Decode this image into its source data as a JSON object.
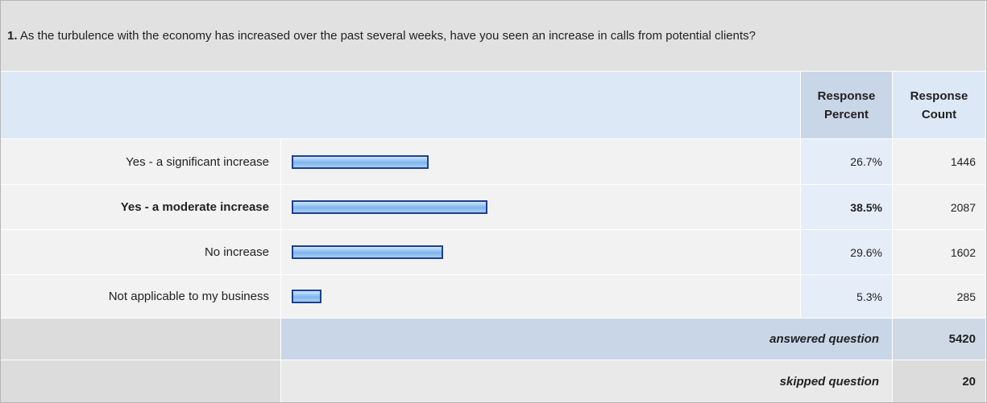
{
  "question": {
    "number": "1.",
    "text": "As the turbulence with the economy has increased over the past several weeks, have you seen an increase in calls from potential clients?"
  },
  "columns": [
    "Response Percent",
    "Response Count"
  ],
  "rows": [
    {
      "label": "Yes - a significant increase",
      "percent": 26.7,
      "percent_label": "26.7%",
      "count": 1446
    },
    {
      "label": "Yes - a moderate increase",
      "percent": 38.5,
      "percent_label": "38.5%",
      "count": 2087,
      "bold": true
    },
    {
      "label": "No increase",
      "percent": 29.6,
      "percent_label": "29.6%",
      "count": 1602
    },
    {
      "label": "Not applicable to my business",
      "percent": 5.3,
      "percent_label": "5.3%",
      "count": 285
    }
  ],
  "footer": [
    {
      "label": "answered question",
      "count": 5420
    },
    {
      "label": "skipped question",
      "count": 20
    }
  ]
}
